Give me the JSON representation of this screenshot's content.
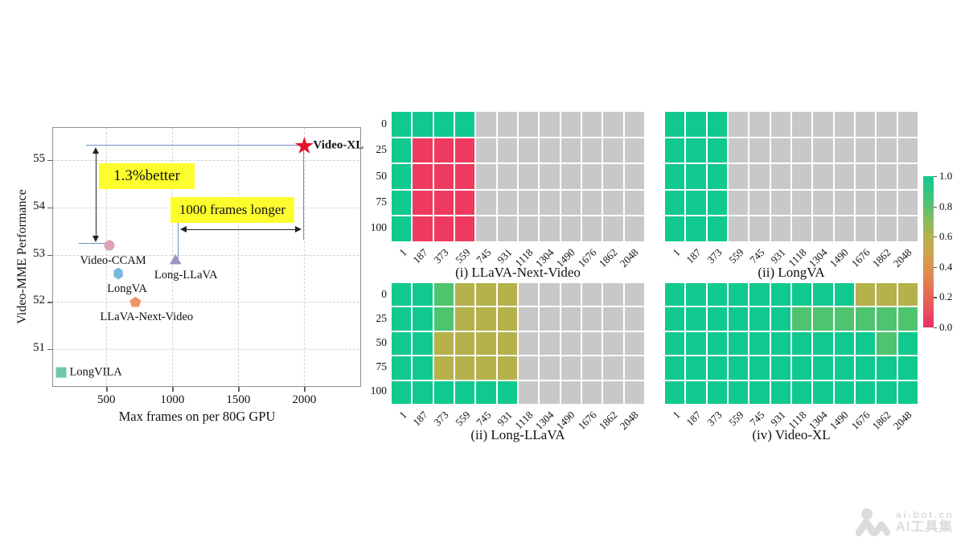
{
  "chart_data": {
    "type": [
      "scatter",
      "heatmap"
    ],
    "scatter": {
      "xlabel": "Max frames on per 80G GPU",
      "ylabel": "Video-MME Performance",
      "xlim": [
        90,
        2430
      ],
      "ylim": [
        50.2,
        55.7
      ],
      "grid": "dashed",
      "xtick_values": [
        500,
        1000,
        1500,
        2000
      ],
      "xtick_labels": [
        "500",
        "1000",
        "1500",
        "2000"
      ],
      "ytick_values": [
        51,
        52,
        53,
        54,
        55
      ],
      "ytick_labels": [
        "51",
        "52",
        "53",
        "54",
        "55"
      ],
      "annotations": {
        "better": "1.3%better",
        "longer": "1000 frames longer"
      },
      "points": [
        {
          "name": "Video-XL",
          "marker": "star",
          "color": "#e8132b",
          "x": 2000,
          "y": 55.3,
          "label": {
            "anchor": "right",
            "dx": 11,
            "dy": 0,
            "bold": true
          }
        },
        {
          "name": "Video-CCAM",
          "marker": "circle",
          "color": "#dfa1b5",
          "x": 520,
          "y": 53.2,
          "label": {
            "anchor": "below",
            "dx": 5,
            "dy": 11
          }
        },
        {
          "name": "LongVA",
          "marker": "hexagon",
          "color": "#74b7dc",
          "x": 590,
          "y": 52.6,
          "label": {
            "anchor": "below",
            "dx": 11,
            "dy": 11
          }
        },
        {
          "name": "LLaVA-Next-Video",
          "marker": "pentagon",
          "color": "#ef9268",
          "x": 720,
          "y": 52.0,
          "label": {
            "anchor": "below",
            "dx": 14,
            "dy": 11
          }
        },
        {
          "name": "Long-LLaVA",
          "marker": "triangle",
          "color": "#a290c6",
          "x": 1024,
          "y": 52.9,
          "label": {
            "anchor": "below",
            "dx": 13,
            "dy": 12
          }
        },
        {
          "name": "LongVILA",
          "marker": "square",
          "color": "#6fc7a5",
          "x": 160,
          "y": 50.5,
          "label": {
            "anchor": "right",
            "dx": 10,
            "dy": 0
          }
        }
      ]
    },
    "row_labels": [
      "0",
      "25",
      "50",
      "75",
      "100"
    ],
    "col_labels": [
      "1",
      "187",
      "373",
      "559",
      "745",
      "931",
      "1118",
      "1304",
      "1490",
      "1676",
      "1862",
      "2048"
    ],
    "heatmap_colors": {
      "g": "#10c98e",
      "m": "#4fc46f",
      "o": "#b5b14b",
      "r": "#ee3a5e",
      "x": "#c8c8c8"
    },
    "heatmaps": [
      {
        "caption": "(i) LLaVA-Next-Video",
        "row_labels_visible": true,
        "rows": [
          "ggggxxxxxxxx",
          "grrrxxxxxxxx",
          "grrrxxxxxxxx",
          "grrrxxxxxxxx",
          "grrrxxxxxxxx"
        ]
      },
      {
        "caption": "(ii) LongVA",
        "row_labels_visible": false,
        "rows": [
          "gggxxxxxxxxx",
          "gggxxxxxxxxx",
          "gggxxxxxxxxx",
          "gggxxxxxxxxx",
          "gggxxxxxxxxx"
        ]
      },
      {
        "caption": "(ii) Long-LLaVA",
        "row_labels_visible": true,
        "rows": [
          "ggmoooxxxxxx",
          "ggmoooxxxxxx",
          "ggooooxxxxxx",
          "ggooooxxxxxx",
          "ggggggxxxxxx"
        ]
      },
      {
        "caption": "(iv) Video-XL",
        "row_labels_visible": false,
        "rows": [
          "gggggggggooo",
          "ggggggmmmmmm",
          "ggggggggggmg",
          "gggggggggggg",
          "gggggggggggg"
        ]
      }
    ],
    "colorbar": {
      "tick_labels": [
        "1.0",
        "0.8",
        "0.6",
        "0.4",
        "0.2",
        "0.0"
      ]
    }
  },
  "watermark": {
    "brand": "ai-bot.cn",
    "name": "AI工具集"
  }
}
